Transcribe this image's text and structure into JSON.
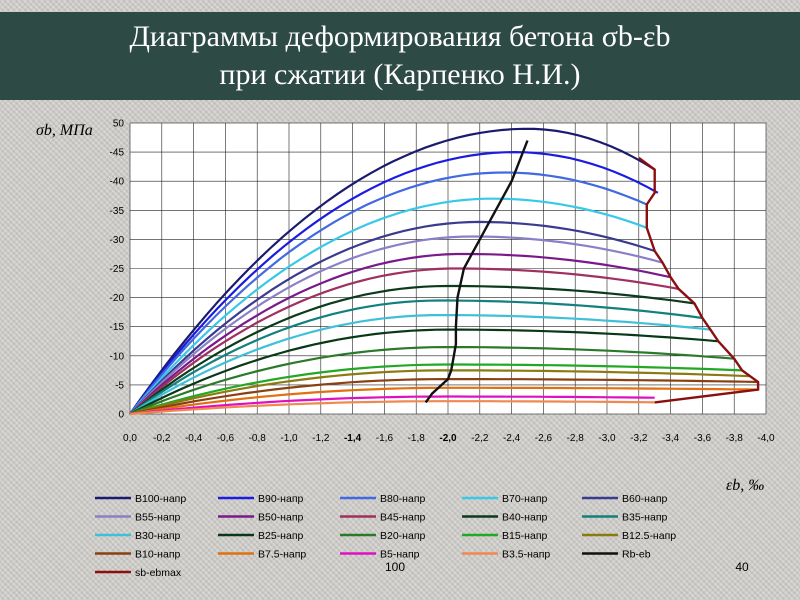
{
  "slide": {
    "title_line1": "Диаграммы деформирования бетона σb-εb",
    "title_line2": "при сжатии (Карпенко Н.И.)",
    "footer_left": "100",
    "footer_right": "40"
  },
  "colors": {
    "title_bar": "#2e4a45",
    "background": "#d3d1cd"
  },
  "chart_data": {
    "type": "line",
    "ylabel": "σb, МПа",
    "xlabel": "εb, ‰",
    "ylim": [
      0,
      -50
    ],
    "xlim": [
      0,
      -4.0
    ],
    "grid": true,
    "y_ticks": [
      "0",
      "-5",
      "-10",
      "-15",
      "-20",
      "-25",
      "-30",
      "-35",
      "-40",
      "-45",
      "50"
    ],
    "x_ticks": [
      "0,0",
      "-0,2",
      "-0,4",
      "-0,6",
      "-0,8",
      "-1,0",
      "-1,2",
      "-1,4",
      "-1,6",
      "-1,8",
      "-2,0",
      "-2,2",
      "-2,4",
      "-2,6",
      "-2,8",
      "-3,0",
      "-3,2",
      "-3,4",
      "-3,6",
      "-3,8",
      "-4,0"
    ],
    "x_ticks_bold": [
      "-1,4",
      "-2,0"
    ],
    "legend_position": "bottom",
    "series": [
      {
        "name": "B100-напр",
        "color": "#1a1a6e",
        "peak_stress": -49,
        "peak_strain": -2.5,
        "ult_strain": -3.3,
        "ult_stress": -42
      },
      {
        "name": "B90-напр",
        "color": "#1c1ce0",
        "peak_stress": -45,
        "peak_strain": -2.42,
        "ult_strain": -3.32,
        "ult_stress": -38
      },
      {
        "name": "B80-напр",
        "color": "#4169e1",
        "peak_stress": -41.5,
        "peak_strain": -2.35,
        "ult_strain": -3.25,
        "ult_stress": -36
      },
      {
        "name": "B70-напр",
        "color": "#38c8e8",
        "peak_stress": -37,
        "peak_strain": -2.28,
        "ult_strain": -3.25,
        "ult_stress": -32
      },
      {
        "name": "B60-напр",
        "color": "#3a3a90",
        "peak_stress": -33,
        "peak_strain": -2.2,
        "ult_strain": -3.3,
        "ult_stress": -28
      },
      {
        "name": "B55-напр",
        "color": "#8a80c8",
        "peak_stress": -30.5,
        "peak_strain": -2.15,
        "ult_strain": -3.35,
        "ult_stress": -26
      },
      {
        "name": "B50-напр",
        "color": "#7a1a8a",
        "peak_stress": -27.5,
        "peak_strain": -2.1,
        "ult_strain": -3.4,
        "ult_stress": -23.5
      },
      {
        "name": "B45-напр",
        "color": "#a03060",
        "peak_stress": -25,
        "peak_strain": -2.05,
        "ult_strain": -3.45,
        "ult_stress": -21.5
      },
      {
        "name": "B40-напр",
        "color": "#0c3a1a",
        "peak_stress": -22,
        "peak_strain": -2.0,
        "ult_strain": -3.55,
        "ult_stress": -19
      },
      {
        "name": "B35-напр",
        "color": "#138080",
        "peak_stress": -19.5,
        "peak_strain": -1.95,
        "ult_strain": -3.6,
        "ult_stress": -16.5
      },
      {
        "name": "B30-напр",
        "color": "#40c0d8",
        "peak_stress": -17,
        "peak_strain": -1.95,
        "ult_strain": -3.65,
        "ult_stress": -14.5
      },
      {
        "name": "B25-напр",
        "color": "#083818",
        "peak_stress": -14.5,
        "peak_strain": -2.0,
        "ult_strain": -3.7,
        "ult_stress": -12.5
      },
      {
        "name": "B20-напр",
        "color": "#2a7a2a",
        "peak_stress": -11.5,
        "peak_strain": -2.0,
        "ult_strain": -3.8,
        "ult_stress": -9.5
      },
      {
        "name": "B15-напр",
        "color": "#22a822",
        "peak_stress": -8.5,
        "peak_strain": -2.0,
        "ult_strain": -3.85,
        "ult_stress": -7.5
      },
      {
        "name": "B12.5-напр",
        "color": "#8a7a10",
        "peak_stress": -7.5,
        "peak_strain": -2.0,
        "ult_strain": -3.9,
        "ult_stress": -6.5
      },
      {
        "name": "B10-напр",
        "color": "#8a4010",
        "peak_stress": -6,
        "peak_strain": -2.0,
        "ult_strain": -3.95,
        "ult_stress": -5.5
      },
      {
        "name": "B7.5-напр",
        "color": "#e07010",
        "peak_stress": -4.5,
        "peak_strain": -2.0,
        "ult_strain": -3.95,
        "ult_stress": -4.2
      },
      {
        "name": "B5-напр",
        "color": "#e010c0",
        "peak_stress": -3,
        "peak_strain": -2.0,
        "ult_strain": -3.3,
        "ult_stress": -2.8
      },
      {
        "name": "B3.5-напр",
        "color": "#f08850",
        "peak_stress": -2.2,
        "peak_strain": -2.0,
        "ult_strain": -3.3,
        "ult_stress": -2.0
      }
    ],
    "rb_eb": {
      "name": "Rb-eb",
      "color": "#111111",
      "x": [
        -1.86,
        -1.9,
        -1.96,
        -2.0,
        -2.02,
        -2.03,
        -2.05,
        -2.05,
        -2.06,
        -2.1,
        -2.2,
        -2.3,
        -2.4,
        -2.5
      ],
      "y": [
        -2,
        -3.5,
        -5,
        -6,
        -7.5,
        -9,
        -12,
        -15,
        -20,
        -25,
        -30,
        -35,
        -40,
        -47
      ]
    },
    "sb_ebmax": {
      "name": "sb-ebmax",
      "color": "#8a1010",
      "x": [
        -3.2,
        -3.3,
        -3.3,
        -3.25,
        -3.25,
        -3.3,
        -3.35,
        -3.4,
        -3.45,
        -3.55,
        -3.6,
        -3.65,
        -3.7,
        -3.8,
        -3.85,
        -3.9,
        -3.95,
        -3.95,
        -3.3
      ],
      "y": [
        -44,
        -42,
        -38,
        -36,
        -32,
        -28,
        -26,
        -23.5,
        -21.5,
        -19,
        -16.5,
        -14.5,
        -12.5,
        -9.5,
        -7.5,
        -6.5,
        -5.5,
        -4.2,
        -2.0
      ]
    }
  }
}
